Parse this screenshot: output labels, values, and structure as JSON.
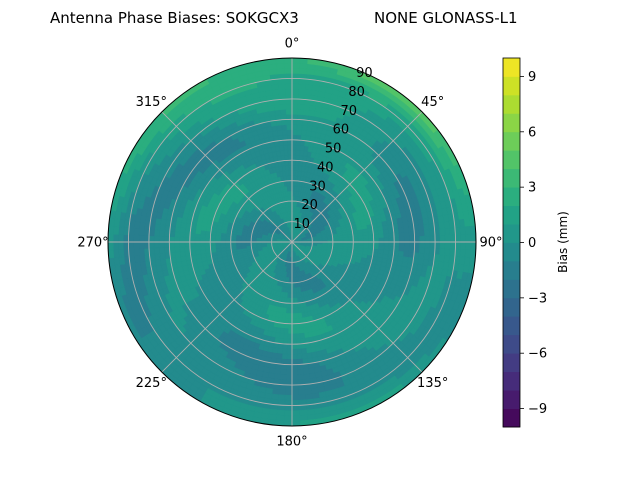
{
  "chart_data": {
    "type": "heatmap",
    "subtype": "polar-contour",
    "title_left": "Antenna Phase Biases: SOKGCX3",
    "title_right": "NONE GLONASS-L1",
    "azimuth_ticks": [
      "0°",
      "45°",
      "90°",
      "135°",
      "180°",
      "225°",
      "270°",
      "315°"
    ],
    "radial_ticks": [
      "10",
      "20",
      "30",
      "40",
      "50",
      "60",
      "70",
      "80",
      "90"
    ],
    "radial_range": [
      0,
      90
    ],
    "colorbar": {
      "label": "Bias (mm)",
      "range": [
        -10,
        10
      ],
      "ticks": [
        "−9",
        "−6",
        "−3",
        "0",
        "3",
        "6",
        "9"
      ],
      "colormap": "viridis"
    },
    "grid": true,
    "samples": [
      {
        "zenith": 0,
        "bias": 0.0
      },
      {
        "zenith": 20,
        "bias": -0.5
      },
      {
        "zenith": 40,
        "bias": 0.5
      },
      {
        "zenith": 60,
        "bias": -0.5
      },
      {
        "zenith": 80,
        "bias": 0.5
      },
      {
        "zenith": 90,
        "bias": 2.0
      }
    ]
  }
}
